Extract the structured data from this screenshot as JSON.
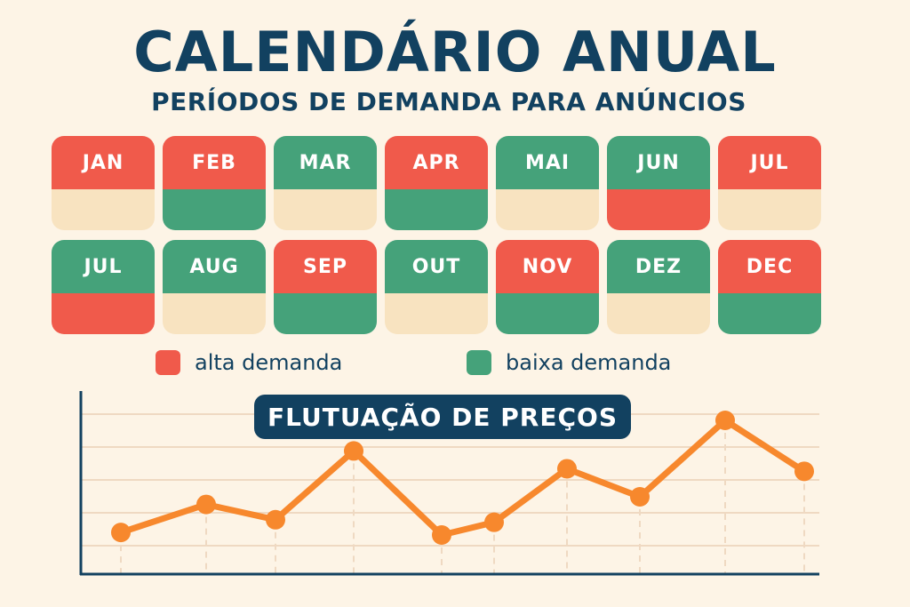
{
  "header": {
    "title": "CALENDÁRIO ANUAL",
    "subtitle": "PERÍODOS DE DEMANDA PARA ANÚNCIOS"
  },
  "colors": {
    "high": "#f05a4b",
    "low": "#45a27a",
    "neutral": "#f8e3c0",
    "line": "#f7882d",
    "axis": "#124160",
    "grid": "#efd9c2"
  },
  "calendar": {
    "months": [
      {
        "label": "JAN",
        "top": "high",
        "bottom": "neutral"
      },
      {
        "label": "FEB",
        "top": "high",
        "bottom": "low"
      },
      {
        "label": "MAR",
        "top": "low",
        "bottom": "neutral"
      },
      {
        "label": "APR",
        "top": "high",
        "bottom": "low"
      },
      {
        "label": "MAI",
        "top": "low",
        "bottom": "neutral"
      },
      {
        "label": "JUN",
        "top": "low",
        "bottom": "high"
      },
      {
        "label": "JUL",
        "top": "high",
        "bottom": "neutral"
      },
      {
        "label": "JUL",
        "top": "low",
        "bottom": "high"
      },
      {
        "label": "AUG",
        "top": "low",
        "bottom": "neutral"
      },
      {
        "label": "SEP",
        "top": "high",
        "bottom": "low"
      },
      {
        "label": "OUT",
        "top": "low",
        "bottom": "neutral"
      },
      {
        "label": "NOV",
        "top": "high",
        "bottom": "low"
      },
      {
        "label": "DEZ",
        "top": "low",
        "bottom": "neutral"
      },
      {
        "label": "DEC",
        "top": "high",
        "bottom": "low"
      }
    ]
  },
  "legend": {
    "high_label": "alta demanda",
    "low_label": "baixa demanda"
  },
  "chart_data": {
    "type": "line",
    "title": "FLUTUAÇÃO DE PREÇOS",
    "xlabel": "",
    "ylabel": "",
    "x": [
      1,
      2,
      3,
      4,
      5,
      6,
      7,
      8,
      9,
      10
    ],
    "series": [
      {
        "values": [
          1.6,
          2.7,
          2.1,
          4.8,
          1.5,
          2.0,
          4.1,
          3.0,
          6.0,
          4.0
        ]
      }
    ],
    "ylim": [
      0,
      7.5
    ],
    "grid": true
  }
}
